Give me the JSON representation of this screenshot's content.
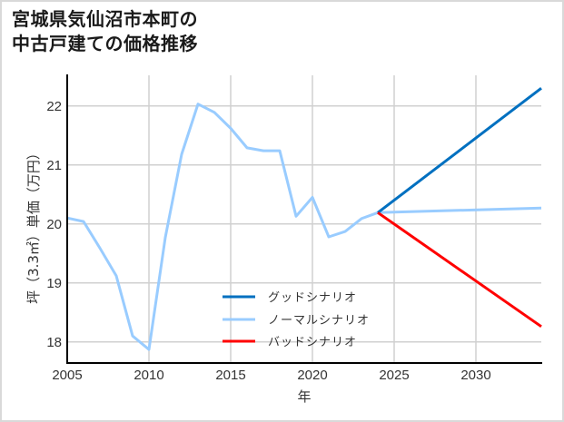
{
  "title": {
    "line1": "宮城県気仙沼市本町の",
    "line2": "中古戸建ての価格推移"
  },
  "colors": {
    "good": "#0070c0",
    "normal": "#99ccff",
    "bad": "#ff0000",
    "grid": "#d0d0d0",
    "axis": "#000000",
    "border": "#d9d9d9"
  },
  "chart_data": {
    "type": "line",
    "title": "宮城県気仙沼市本町の中古戸建ての価格推移",
    "xlabel": "年",
    "ylabel": "坪（3.3㎡）単価（万円）",
    "xlim": [
      2005,
      2034
    ],
    "ylim": [
      17.65,
      22.5
    ],
    "x_ticks": [
      2005,
      2010,
      2015,
      2020,
      2025,
      2030
    ],
    "y_ticks": [
      18,
      19,
      20,
      21,
      22
    ],
    "grid": true,
    "legend_position": "lower center (inside plot)",
    "series": [
      {
        "name": "グッドシナリオ",
        "color": "#0070c0",
        "x": [
          2024,
          2034
        ],
        "values": [
          20.19,
          22.3
        ]
      },
      {
        "name": "ノーマルシナリオ",
        "color": "#99ccff",
        "x": [
          2005,
          2006,
          2007,
          2008,
          2009,
          2010,
          2011,
          2012,
          2013,
          2014,
          2015,
          2016,
          2017,
          2018,
          2019,
          2020,
          2021,
          2022,
          2023,
          2024,
          2034
        ],
        "values": [
          20.1,
          20.04,
          19.59,
          19.12,
          18.1,
          17.87,
          19.77,
          21.18,
          22.03,
          21.89,
          21.62,
          21.29,
          21.24,
          21.24,
          20.13,
          20.45,
          19.78,
          19.87,
          20.09,
          20.19,
          20.27
        ]
      },
      {
        "name": "バッドシナリオ",
        "color": "#ff0000",
        "x": [
          2024,
          2034
        ],
        "values": [
          20.19,
          18.26
        ]
      }
    ]
  },
  "axes": {
    "xlabel": "年",
    "ylabel": "坪（3.3㎡）単価（万円）"
  },
  "legend": [
    {
      "label": "グッドシナリオ",
      "color": "#0070c0"
    },
    {
      "label": "ノーマルシナリオ",
      "color": "#99ccff"
    },
    {
      "label": "バッドシナリオ",
      "color": "#ff0000"
    }
  ]
}
